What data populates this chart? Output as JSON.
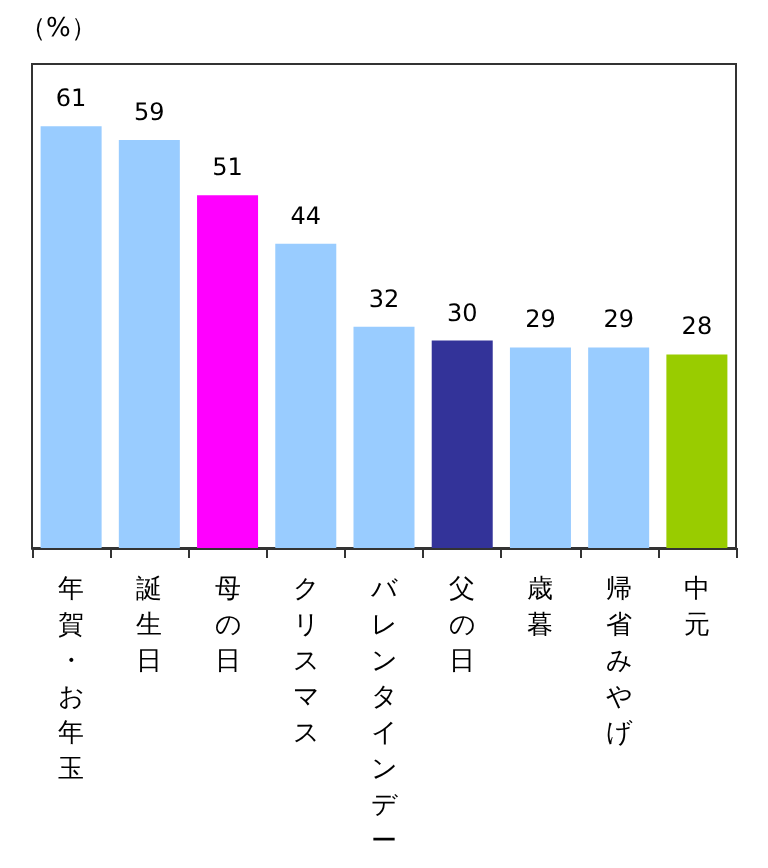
{
  "chart_data": {
    "type": "bar",
    "ylabel": "（%）",
    "categories": [
      "年賀・お年玉",
      "誕生日",
      "母の日",
      "クリスマス",
      "バレンタインデー",
      "父の日",
      "歳暮",
      "帰省みやげ",
      "中元"
    ],
    "values": [
      61,
      59,
      51,
      44,
      32,
      30,
      29,
      29,
      28
    ],
    "colors": [
      "#99ccff",
      "#99ccff",
      "#ff00ff",
      "#99ccff",
      "#99ccff",
      "#333399",
      "#99ccff",
      "#99ccff",
      "#99cc00"
    ],
    "ylim": [
      0,
      70
    ],
    "tick_labels": "x",
    "data_labels": true
  }
}
